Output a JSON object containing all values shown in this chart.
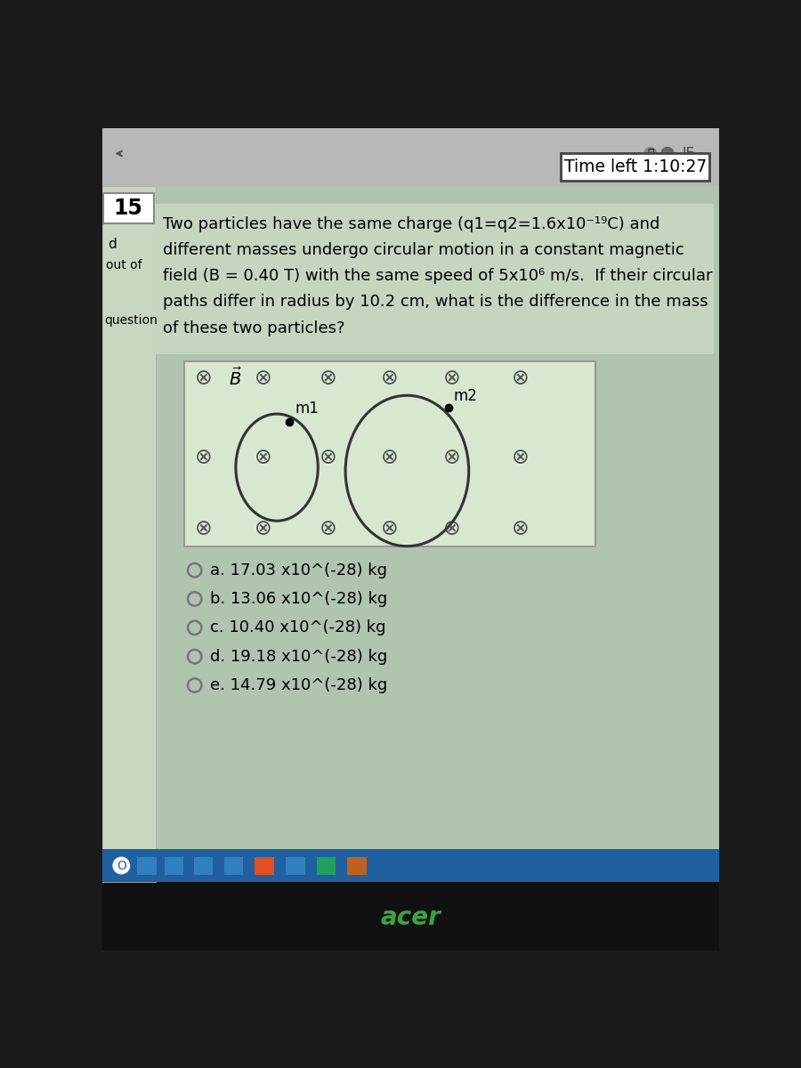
{
  "time_text": "Time left 1:10:27",
  "question_number": "15",
  "left_label1": "d",
  "left_label2": "out of",
  "left_label3": "question",
  "q_line1": "Two particles have the same charge (q1=q2=1.6x10⁻¹⁹C) and",
  "q_line2": "different masses undergo circular motion in a constant magnetic",
  "q_line3": "field (B = 0.40 T) with the same speed of 5x10⁶ m/s.  If their circular",
  "q_line4": "paths differ in radius by 10.2 cm, what is the difference in the mass",
  "q_line5": "of these two particles?",
  "m1_label": "m1",
  "m2_label": "m2",
  "options": [
    "a. 17.03 x10^(-28) kg",
    "b. 13.06 x10^(-28) kg",
    "c. 10.40 x10^(-28) kg",
    "d. 19.18 x10^(-28) kg",
    "e. 14.79 x10^(-28) kg"
  ],
  "cross_symbol": "⊗",
  "outer_bg": "#1a1a1a",
  "screen_top_bg": "#c8c8c8",
  "main_bg": "#b0c4b0",
  "sidebar_bg": "#c8d8c0",
  "question_area_bg": "#c5d5c0",
  "diagram_box_bg": "#d8e8d0",
  "taskbar_color": "#2060a0",
  "black_bottom": "#111111",
  "acer_color": "#40a040",
  "time_box_border": "#555555",
  "cross_color": "#505050",
  "circle_color": "#333333",
  "text_color": "#111111",
  "radio_color": "#777777"
}
